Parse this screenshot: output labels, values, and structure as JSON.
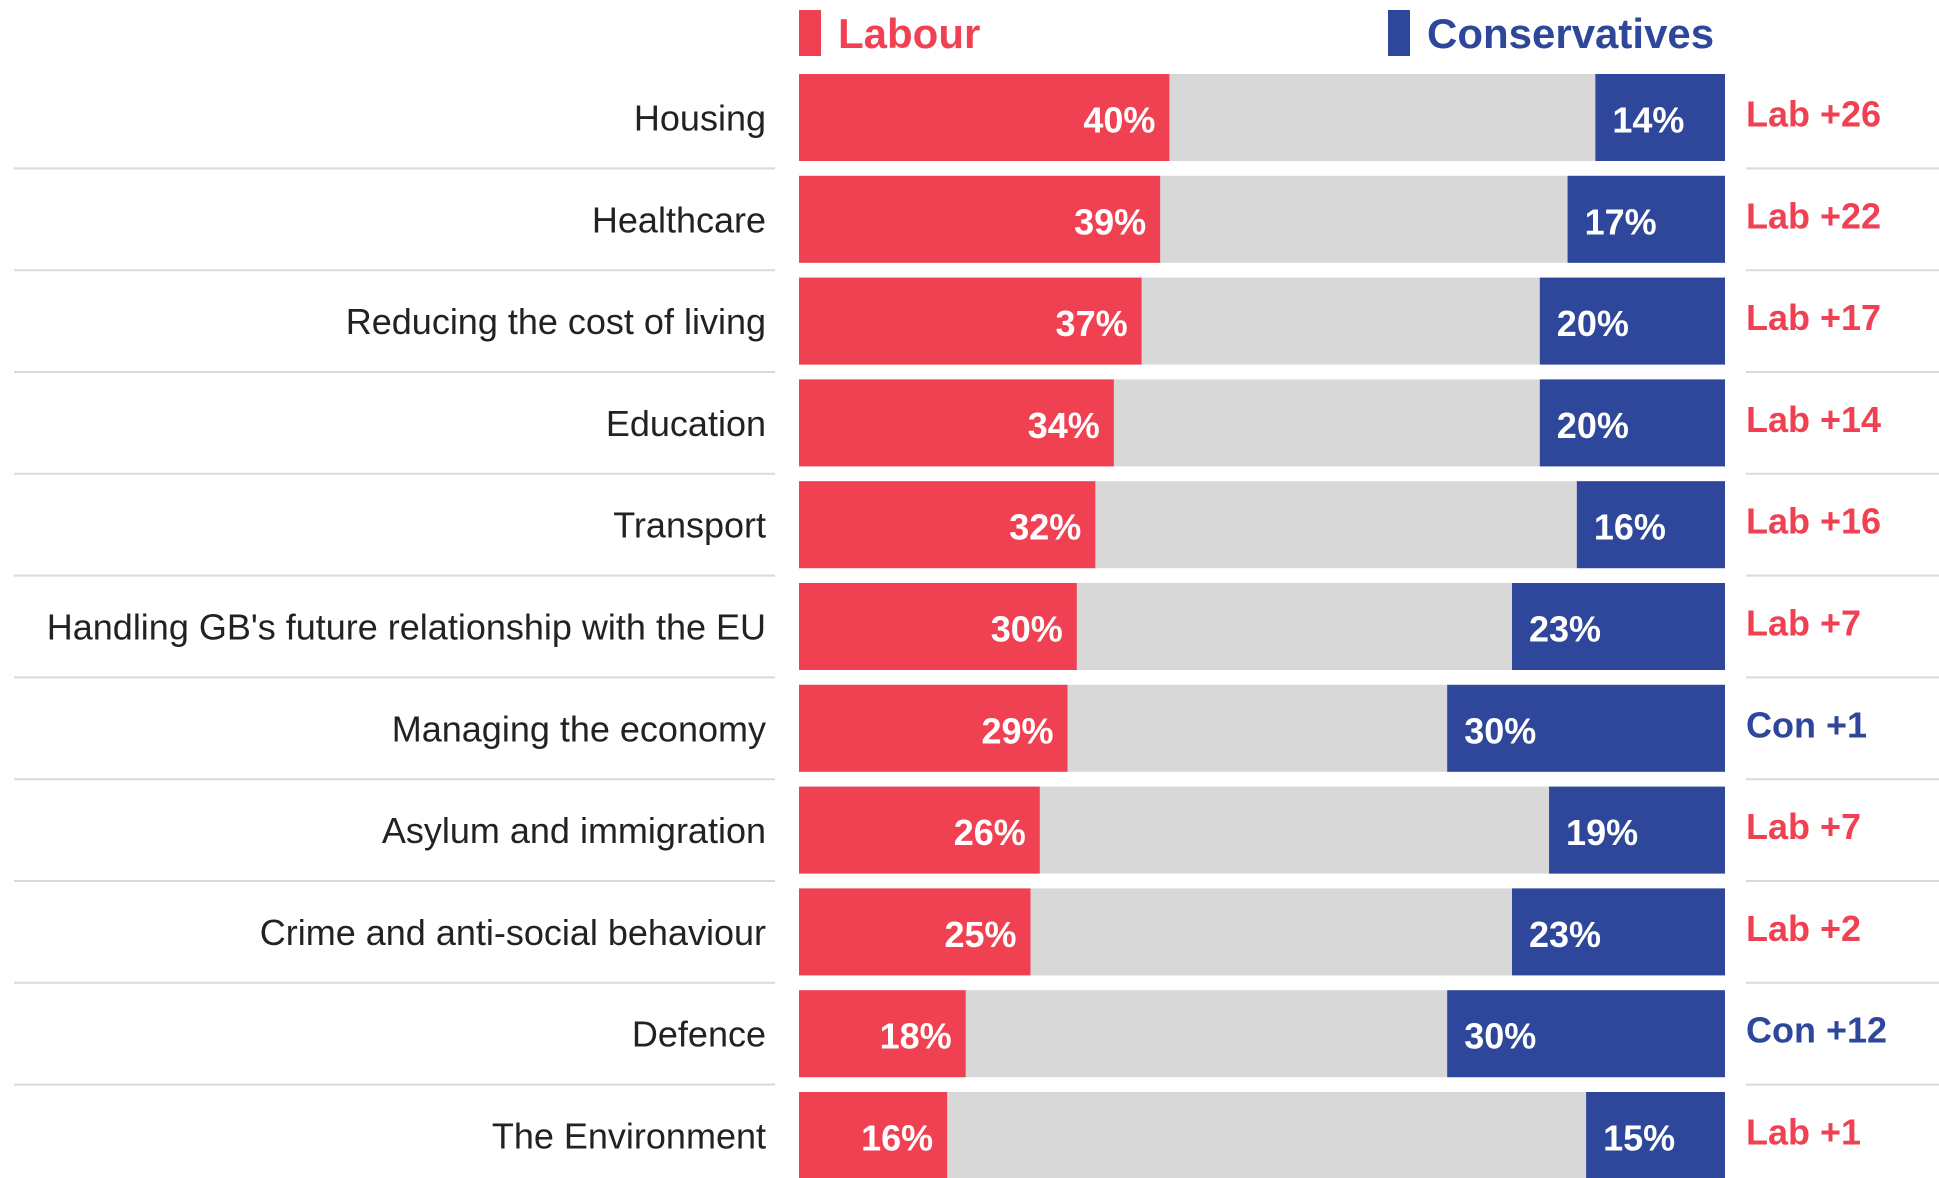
{
  "colors": {
    "labour": "#F04153",
    "conservative": "#2E479A",
    "neutral": "#D8D8D8",
    "divider": "#D9D9D9",
    "text": "#222222"
  },
  "chart_data": {
    "type": "bar",
    "orientation": "horizontal-stacked",
    "title": "",
    "xlabel": "",
    "ylabel": "",
    "xlim": [
      0,
      100
    ],
    "grid": false,
    "legend_position": "top",
    "legend": [
      {
        "name": "Labour",
        "color": "#F04153"
      },
      {
        "name": "Conservatives",
        "color": "#2E479A"
      }
    ],
    "categories": [
      "Housing",
      "Healthcare",
      "Reducing the cost of living",
      "Education",
      "Transport",
      "Handling GB's future relationship with the EU",
      "Managing the economy",
      "Asylum and immigration",
      "Crime and anti-social behaviour",
      "Defence",
      "The Environment"
    ],
    "series": [
      {
        "name": "Labour",
        "values": [
          40,
          39,
          37,
          34,
          32,
          30,
          29,
          26,
          25,
          18,
          16
        ],
        "labels": [
          "40%",
          "39%",
          "37%",
          "34%",
          "32%",
          "30%",
          "29%",
          "26%",
          "25%",
          "18%",
          "16%"
        ]
      },
      {
        "name": "Conservatives",
        "values": [
          14,
          17,
          20,
          20,
          16,
          23,
          30,
          19,
          23,
          30,
          15
        ],
        "labels": [
          "14%",
          "17%",
          "20%",
          "20%",
          "16%",
          "23%",
          "30%",
          "19%",
          "23%",
          "30%",
          "15%"
        ]
      }
    ],
    "leads": [
      {
        "party": "Lab",
        "text": "Lab +26"
      },
      {
        "party": "Lab",
        "text": "Lab +22"
      },
      {
        "party": "Lab",
        "text": "Lab +17"
      },
      {
        "party": "Lab",
        "text": "Lab +14"
      },
      {
        "party": "Lab",
        "text": "Lab +16"
      },
      {
        "party": "Lab",
        "text": "Lab +7"
      },
      {
        "party": "Con",
        "text": "Con +1"
      },
      {
        "party": "Lab",
        "text": "Lab +7"
      },
      {
        "party": "Lab",
        "text": "Lab +2"
      },
      {
        "party": "Con",
        "text": "Con +12"
      },
      {
        "party": "Lab",
        "text": "Lab +1"
      }
    ]
  }
}
